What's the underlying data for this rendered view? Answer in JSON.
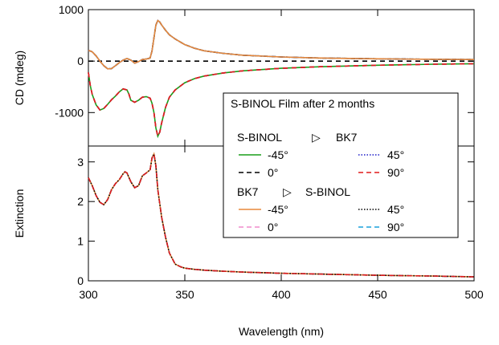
{
  "chart_data": [
    {
      "type": "line",
      "panel": "top",
      "ylabel": "CD (mdeg)",
      "xlim": [
        300,
        500
      ],
      "ylim": [
        -1650,
        1000
      ],
      "yticks": [
        1000,
        0,
        -1000
      ],
      "ytick_labels": [
        "1000",
        "0",
        "-1000"
      ],
      "shared_x": true,
      "series_groups": {
        "upper_curve": {
          "x": [
            300,
            302,
            304,
            306,
            308,
            310,
            312,
            314,
            316,
            318,
            320,
            322,
            324,
            326,
            328,
            330,
            332,
            333,
            334,
            335,
            336,
            337,
            338,
            340,
            342,
            345,
            350,
            355,
            360,
            370,
            380,
            400,
            420,
            450,
            480,
            500
          ],
          "y": [
            210,
            180,
            100,
            0,
            -90,
            -150,
            -145,
            -90,
            -30,
            20,
            50,
            20,
            -40,
            -10,
            30,
            40,
            60,
            200,
            450,
            700,
            790,
            760,
            700,
            600,
            510,
            430,
            320,
            250,
            200,
            150,
            115,
            80,
            60,
            45,
            35,
            30
          ]
        },
        "lower_curve": {
          "x": [
            300,
            301,
            302,
            304,
            306,
            308,
            310,
            312,
            314,
            316,
            318,
            320,
            321,
            322,
            324,
            326,
            328,
            330,
            332,
            333,
            334,
            335,
            336,
            337,
            338,
            340,
            342,
            345,
            350,
            355,
            360,
            370,
            380,
            400,
            420,
            450,
            480,
            500
          ],
          "y": [
            -220,
            -480,
            -650,
            -850,
            -950,
            -920,
            -840,
            -750,
            -680,
            -600,
            -540,
            -560,
            -640,
            -760,
            -800,
            -760,
            -700,
            -690,
            -720,
            -820,
            -1000,
            -1300,
            -1460,
            -1380,
            -1200,
            -900,
            -700,
            -560,
            -420,
            -340,
            -290,
            -230,
            -190,
            -140,
            -110,
            -80,
            -60,
            -50
          ]
        },
        "zero_line": {
          "x": [
            300,
            500
          ],
          "y": [
            0,
            0
          ]
        }
      }
    },
    {
      "type": "line",
      "panel": "bottom",
      "ylabel": "Extinction",
      "xlabel": "Wavelength (nm)",
      "xlim": [
        300,
        500
      ],
      "ylim": [
        0,
        3.4
      ],
      "xticks": [
        300,
        350,
        400,
        450,
        500
      ],
      "xtick_labels": [
        "300",
        "350",
        "400",
        "450",
        "500"
      ],
      "yticks": [
        0,
        1,
        2,
        3
      ],
      "ytick_labels": [
        "0",
        "1",
        "2",
        "3"
      ],
      "curve": {
        "x": [
          300,
          302,
          304,
          306,
          308,
          310,
          312,
          314,
          316,
          318,
          319,
          320,
          322,
          324,
          326,
          328,
          330,
          332,
          333,
          334,
          335,
          336,
          338,
          340,
          342,
          345,
          348,
          350,
          355,
          360,
          370,
          380,
          400,
          420,
          450,
          480,
          500
        ],
        "y": [
          2.6,
          2.4,
          2.15,
          1.98,
          1.92,
          2.05,
          2.3,
          2.45,
          2.55,
          2.7,
          2.75,
          2.72,
          2.5,
          2.35,
          2.4,
          2.65,
          2.72,
          2.8,
          3.1,
          3.2,
          2.9,
          2.3,
          1.6,
          1.1,
          0.7,
          0.42,
          0.35,
          0.32,
          0.29,
          0.27,
          0.24,
          0.22,
          0.19,
          0.17,
          0.14,
          0.12,
          0.1
        ]
      }
    }
  ],
  "legend": {
    "title": "S-BINOL Film after 2 months",
    "group1_heading_left": "S-BINOL",
    "group1_heading_right": "BK7",
    "group2_heading_left": "BK7",
    "group2_heading_right": "S-BINOL",
    "arrow_glyph": "▷",
    "group1": [
      {
        "label": "-45°",
        "color": "#1a9e1a",
        "dash": "solid"
      },
      {
        "label": "45°",
        "color": "#1c1cc8",
        "dash": "dotted"
      },
      {
        "label": "0°",
        "color": "#000000",
        "dash": "dashed"
      },
      {
        "label": "90°",
        "color": "#e01a1a",
        "dash": "dashed"
      }
    ],
    "group2": [
      {
        "label": "-45°",
        "color": "#e8883a",
        "dash": "solid"
      },
      {
        "label": "45°",
        "color": "#000000",
        "dash": "dotted"
      },
      {
        "label": "0°",
        "color": "#f08ccc",
        "dash": "dashed"
      },
      {
        "label": "90°",
        "color": "#1aa0dc",
        "dash": "dashed"
      }
    ]
  },
  "colors": {
    "upper_curve_colors": [
      "#1aa0dc",
      "#000000",
      "#1c1cc8",
      "#e8883a"
    ],
    "lower_curve_colors": [
      "#1a9e1a",
      "#000000",
      "#f08ccc",
      "#e01a1a"
    ],
    "extinction_colors": [
      "#e8883a",
      "#1aa0dc",
      "#000000",
      "#e01a1a"
    ]
  }
}
